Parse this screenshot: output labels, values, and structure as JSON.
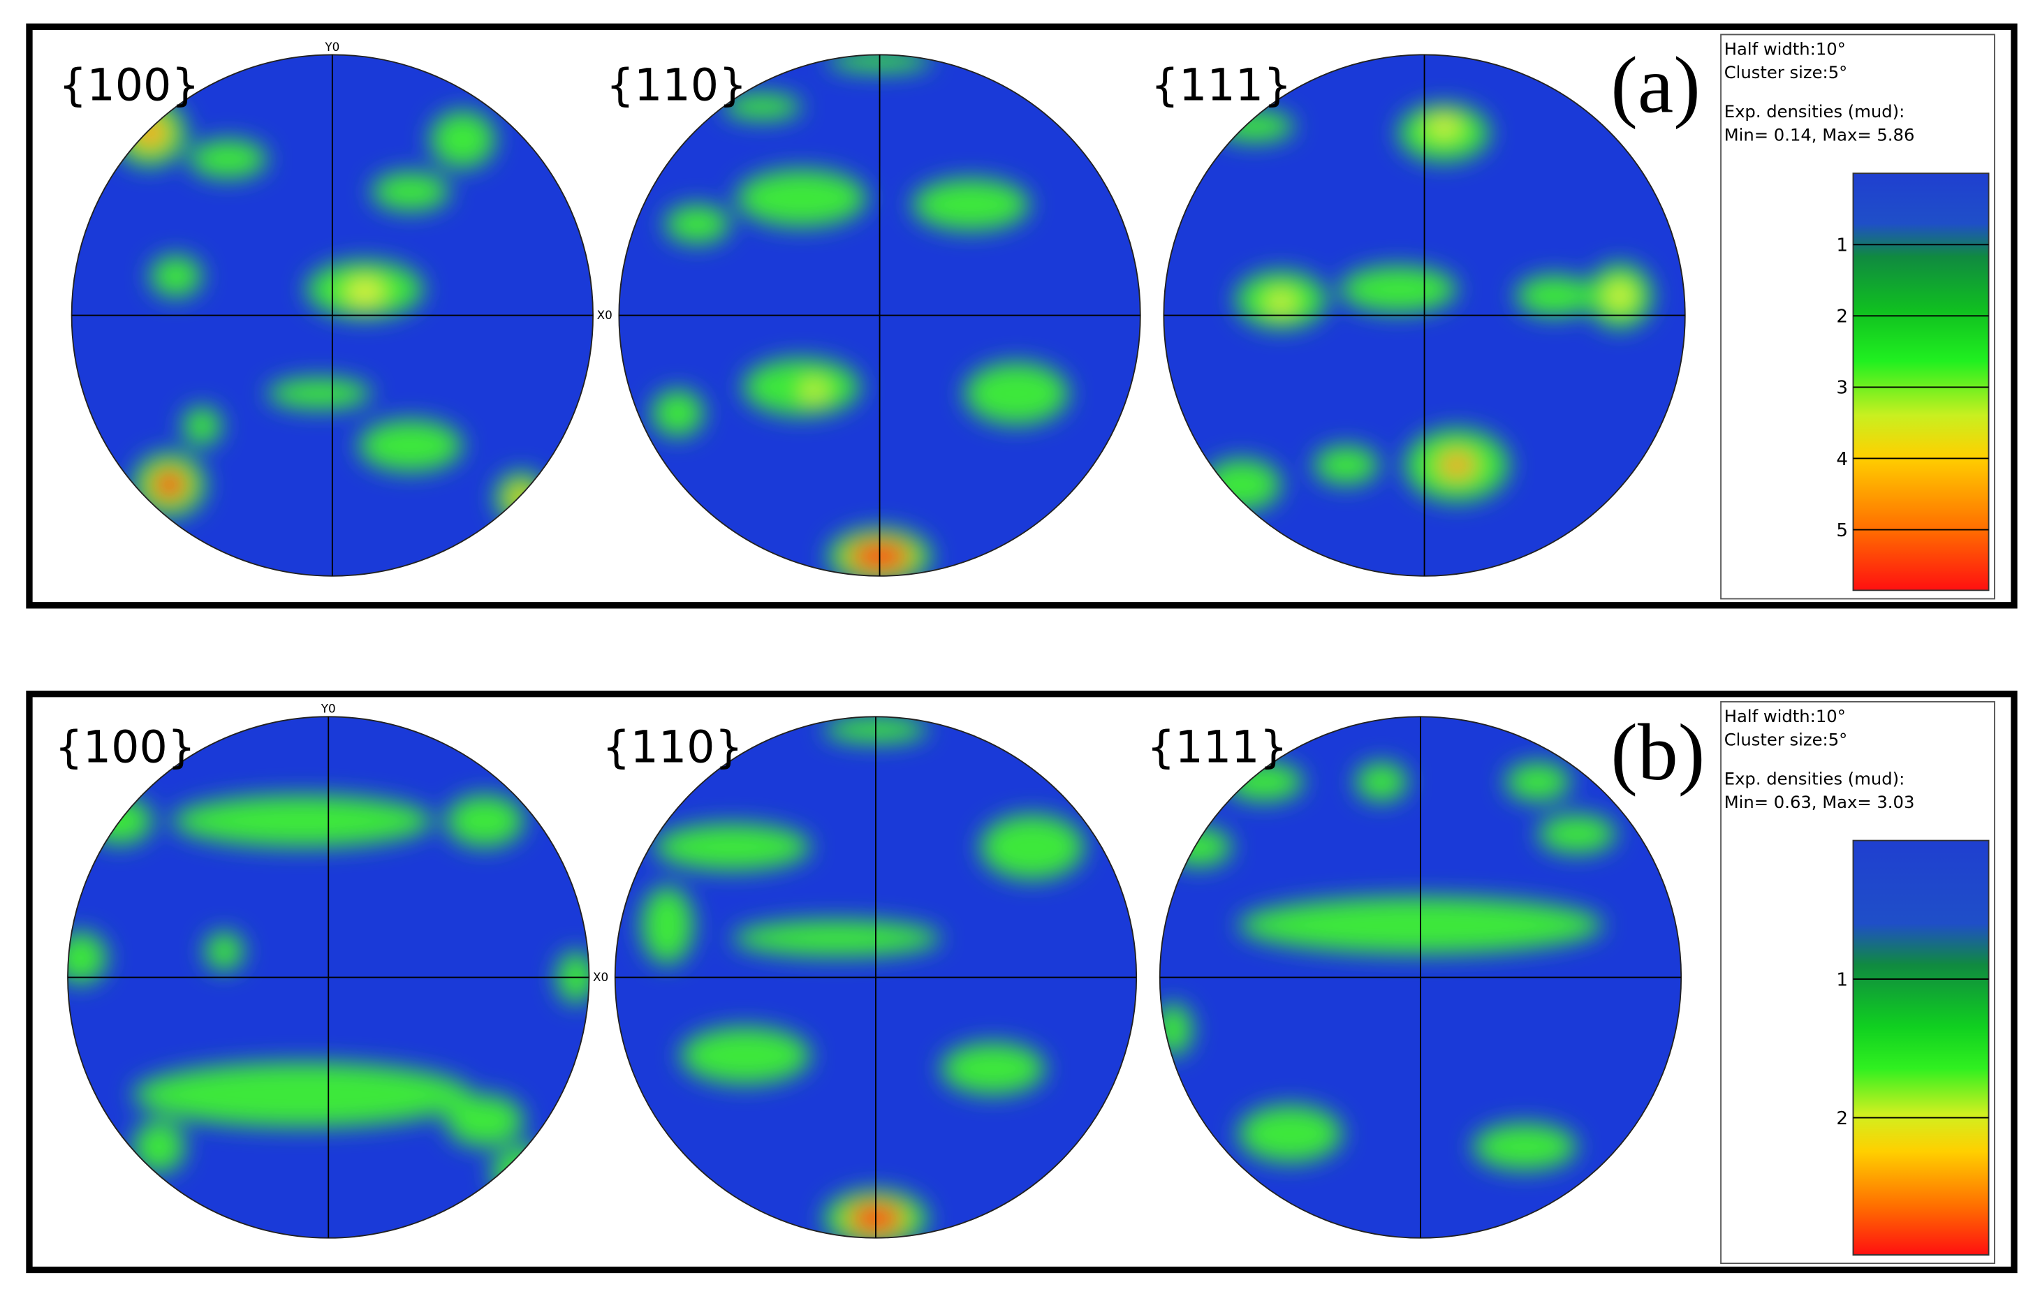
{
  "panels": [
    {
      "label": "(a)",
      "pole_figures": [
        "{100}",
        "{110}",
        "{111}"
      ],
      "axis_labels": {
        "y": "Y0",
        "x": "X0"
      },
      "legend": {
        "half_width": "Half width:10°",
        "cluster_size": "Cluster size:5°",
        "densities": "Exp. densities (mud):",
        "min_max": "Min= 0.14, Max= 5.86"
      },
      "colorbar": {
        "lim": [
          0,
          5.85
        ],
        "ticks": [
          1,
          2,
          3,
          4,
          5
        ]
      }
    },
    {
      "label": "(b)",
      "pole_figures": [
        "{100}",
        "{110}",
        "{111}"
      ],
      "axis_labels": {
        "y": "Y0",
        "x": "X0"
      },
      "legend": {
        "half_width": "Half width:10°",
        "cluster_size": "Cluster size:5°",
        "densities": "Exp. densities (mud):",
        "min_max": "Min= 0.63, Max= 3.03"
      },
      "colorbar": {
        "lim": [
          0,
          2.99
        ],
        "ticks": [
          1,
          2
        ]
      }
    }
  ]
}
